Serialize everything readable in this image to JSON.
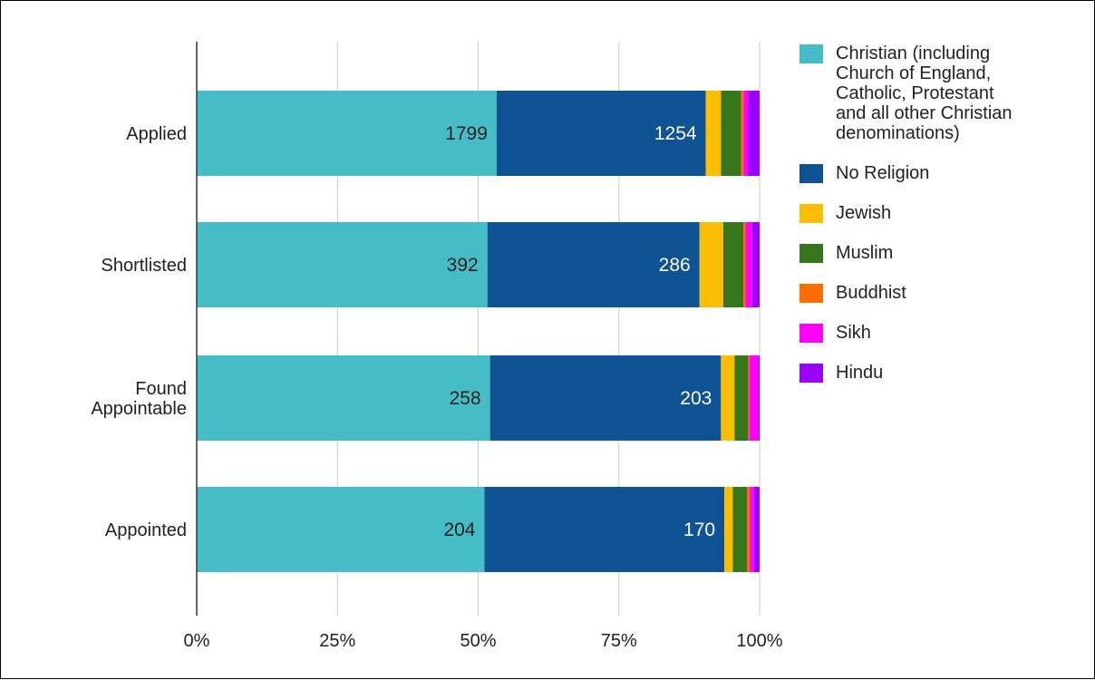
{
  "chart_data": {
    "type": "bar",
    "orientation": "horizontal",
    "stacked": "percent",
    "categories": [
      "Applied",
      "Shortlisted",
      "Found Appointable",
      "Appointed"
    ],
    "category_lines": [
      [
        "Applied"
      ],
      [
        "Shortlisted"
      ],
      [
        "Found",
        "Appointable"
      ],
      [
        "Appointed"
      ]
    ],
    "series": [
      {
        "name": "Christian (including Church of England, Catholic, Protestant and all other Christian denominations)",
        "legend_lines": [
          "Christian (including",
          "Church of England,",
          "Catholic, Protestant",
          "and all other Christian",
          "denominations)"
        ],
        "color": "#46bdc6",
        "label_color": "#222222",
        "values": [
          1799,
          392,
          258,
          204
        ],
        "show_labels": true
      },
      {
        "name": "No Religion",
        "legend_lines": [
          "No Religion"
        ],
        "color": "#0f5394",
        "label_color": "#ffffff",
        "values": [
          1254,
          286,
          203,
          170
        ],
        "show_labels": true
      },
      {
        "name": "Jewish",
        "legend_lines": [
          "Jewish"
        ],
        "color": "#fbbc04",
        "values": [
          92,
          32,
          12,
          6
        ],
        "show_labels": false
      },
      {
        "name": "Muslim",
        "legend_lines": [
          "Muslim"
        ],
        "color": "#38761d",
        "values": [
          121,
          27,
          12,
          10
        ],
        "show_labels": false
      },
      {
        "name": "Buddhist",
        "legend_lines": [
          "Buddhist"
        ],
        "color": "#ff6d01",
        "values": [
          14,
          3,
          1,
          2
        ],
        "show_labels": false
      },
      {
        "name": "Sikh",
        "legend_lines": [
          "Sikh"
        ],
        "color": "#ff00ff",
        "values": [
          28,
          9,
          8,
          3
        ],
        "show_labels": false
      },
      {
        "name": "Hindu",
        "legend_lines": [
          "Hindu"
        ],
        "color": "#9900ff",
        "values": [
          68,
          10,
          1,
          4
        ],
        "show_labels": false
      }
    ],
    "x_ticks": [
      "0%",
      "25%",
      "50%",
      "75%",
      "100%"
    ],
    "xlim": [
      0,
      100
    ],
    "grid": true,
    "legend_position": "right",
    "title": "",
    "xlabel": "",
    "ylabel": ""
  }
}
